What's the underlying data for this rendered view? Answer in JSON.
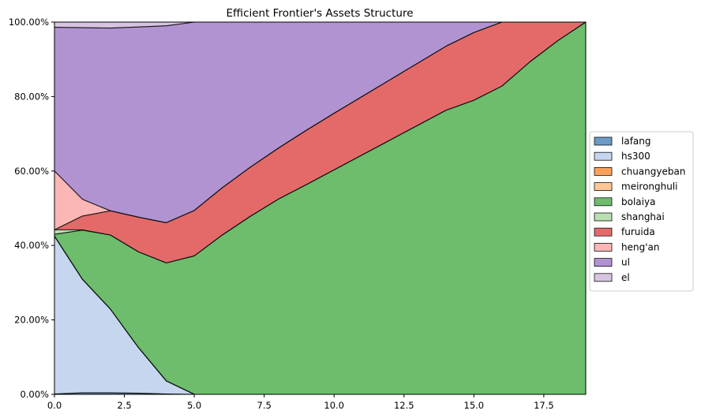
{
  "chart_data": {
    "type": "area",
    "stacked": true,
    "title": "Efficient Frontier's Assets Structure",
    "xlabel": "",
    "ylabel": "",
    "xlim": [
      0,
      19
    ],
    "ylim": [
      0,
      1
    ],
    "x_ticks": [
      0,
      2.5,
      5,
      7.5,
      10,
      12.5,
      15,
      17.5
    ],
    "x_tick_labels": [
      "0.0",
      "2.5",
      "5.0",
      "7.5",
      "10.0",
      "12.5",
      "15.0",
      "17.5"
    ],
    "y_ticks": [
      0,
      0.2,
      0.4,
      0.6,
      0.8,
      1.0
    ],
    "y_tick_labels": [
      "0.00%",
      "20.00%",
      "40.00%",
      "60.00%",
      "80.00%",
      "100.00%"
    ],
    "grid": true,
    "legend_position": "right",
    "x": [
      0,
      1,
      2,
      3,
      4,
      5,
      6,
      7,
      8,
      9,
      10,
      11,
      12,
      13,
      14,
      15,
      16,
      17,
      18,
      19
    ],
    "series": [
      {
        "name": "lafang",
        "color": "#6a9cc6",
        "values": [
          0.001,
          0.004,
          0.004,
          0.003,
          0.001,
          0,
          0,
          0,
          0,
          0,
          0,
          0,
          0,
          0,
          0,
          0,
          0,
          0,
          0,
          0
        ]
      },
      {
        "name": "hs300",
        "color": "#c5d6ee",
        "values": [
          0.424,
          0.305,
          0.225,
          0.123,
          0.035,
          0,
          0,
          0,
          0,
          0,
          0,
          0,
          0,
          0,
          0,
          0,
          0,
          0,
          0,
          0
        ]
      },
      {
        "name": "chuangyeban",
        "color": "#fca15a",
        "values": [
          0,
          0,
          0,
          0,
          0,
          0,
          0,
          0,
          0,
          0,
          0,
          0,
          0,
          0,
          0,
          0,
          0,
          0,
          0,
          0
        ]
      },
      {
        "name": "meironghuli",
        "color": "#fdc895",
        "values": [
          0,
          0,
          0,
          0,
          0,
          0,
          0,
          0,
          0,
          0,
          0,
          0,
          0,
          0,
          0,
          0,
          0,
          0,
          0,
          0
        ]
      },
      {
        "name": "bolaiya",
        "color": "#6dbd6c",
        "values": [
          0.005,
          0.132,
          0.199,
          0.257,
          0.317,
          0.372,
          0.428,
          0.478,
          0.524,
          0.563,
          0.603,
          0.643,
          0.683,
          0.723,
          0.763,
          0.79,
          0.828,
          0.893,
          0.95,
          1.0
        ]
      },
      {
        "name": "shanghai",
        "color": "#b8e0b0",
        "values": [
          0.012,
          0.001,
          0,
          0,
          0,
          0,
          0,
          0,
          0,
          0,
          0,
          0,
          0,
          0,
          0,
          0,
          0,
          0,
          0,
          0
        ]
      },
      {
        "name": "furuida",
        "color": "#e46a6a",
        "values": [
          0,
          0.037,
          0.065,
          0.093,
          0.108,
          0.122,
          0.127,
          0.132,
          0.137,
          0.146,
          0.152,
          0.157,
          0.162,
          0.167,
          0.172,
          0.182,
          0.172,
          0.107,
          0.05,
          0
        ]
      },
      {
        "name": "heng'an",
        "color": "#fdb6b6",
        "values": [
          0.158,
          0.045,
          0,
          0,
          0,
          0,
          0,
          0,
          0,
          0,
          0,
          0,
          0,
          0,
          0,
          0,
          0,
          0,
          0,
          0
        ]
      },
      {
        "name": "ul",
        "color": "#b193d2",
        "values": [
          0.386,
          0.461,
          0.491,
          0.511,
          0.529,
          0.506,
          0.445,
          0.39,
          0.339,
          0.291,
          0.245,
          0.2,
          0.155,
          0.11,
          0.065,
          0.028,
          0,
          0,
          0,
          0
        ]
      },
      {
        "name": "el",
        "color": "#d7c4e2",
        "values": [
          0.014,
          0.015,
          0.016,
          0.013,
          0.01,
          0,
          0,
          0,
          0,
          0,
          0,
          0,
          0,
          0,
          0,
          0,
          0,
          0,
          0,
          0
        ]
      }
    ]
  }
}
